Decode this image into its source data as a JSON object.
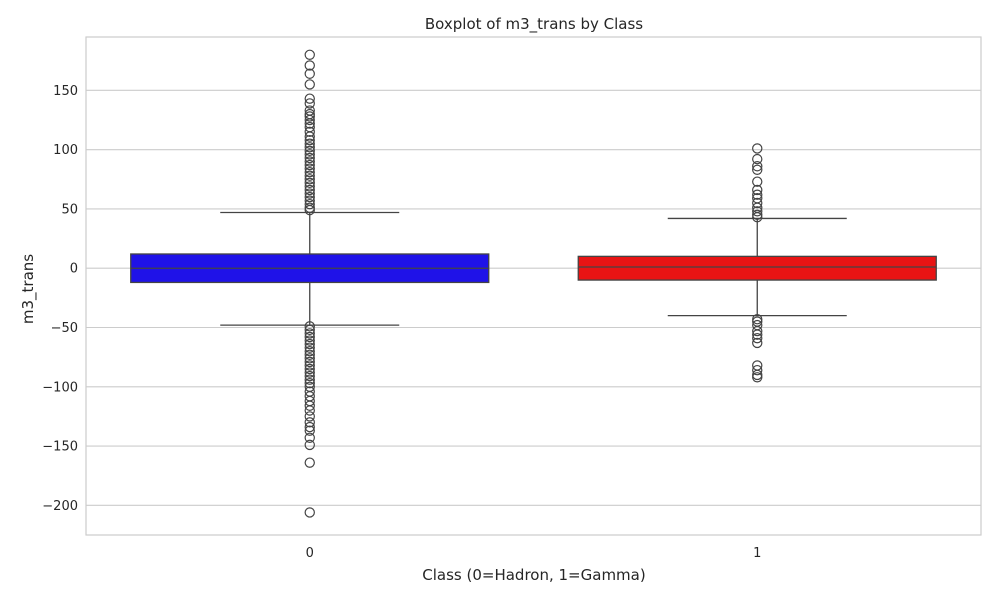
{
  "chart_data": {
    "type": "box",
    "title": "Boxplot of m3_trans by Class",
    "xlabel": "Class (0=Hadron, 1=Gamma)",
    "ylabel": "m3_trans",
    "categories": [
      "0",
      "1"
    ],
    "ylim": [
      -225,
      195
    ],
    "yticks": [
      150,
      100,
      50,
      0,
      -50,
      -100,
      -150,
      -200
    ],
    "ytick_labels": [
      "150",
      "100",
      "50",
      "0",
      "−50",
      "−100",
      "−150",
      "−200"
    ],
    "grid": true,
    "boxes": [
      {
        "category": "0",
        "color": "#1f12e8",
        "q1": -12,
        "median": 0,
        "q3": 12,
        "whisker_low": -48,
        "whisker_high": 47,
        "outliers": [
          180,
          171,
          164,
          155,
          143,
          139,
          133,
          130,
          128,
          125,
          122,
          119,
          115,
          111,
          108,
          105,
          102,
          99,
          96,
          93,
          90,
          87,
          84,
          81,
          78,
          75,
          72,
          69,
          66,
          63,
          60,
          57,
          54,
          51,
          49,
          -49,
          -52,
          -55,
          -58,
          -61,
          -64,
          -67,
          -70,
          -73,
          -76,
          -79,
          -82,
          -85,
          -88,
          -91,
          -94,
          -97,
          -100,
          -104,
          -108,
          -112,
          -116,
          -120,
          -125,
          -130,
          -134,
          -137,
          -143,
          -149,
          -164,
          -206
        ]
      },
      {
        "category": "1",
        "color": "#e81414",
        "q1": -10,
        "median": 1,
        "q3": 10,
        "whisker_low": -40,
        "whisker_high": 42,
        "outliers": [
          101,
          92,
          86,
          83,
          73,
          66,
          62,
          59,
          55,
          51,
          48,
          45,
          43,
          -43,
          -45,
          -48,
          -53,
          -56,
          -59,
          -63,
          -82,
          -86,
          -90,
          -92
        ]
      }
    ],
    "colors": {
      "grid": "#cccccc",
      "frame": "#cccccc",
      "lines": "#444444"
    }
  }
}
